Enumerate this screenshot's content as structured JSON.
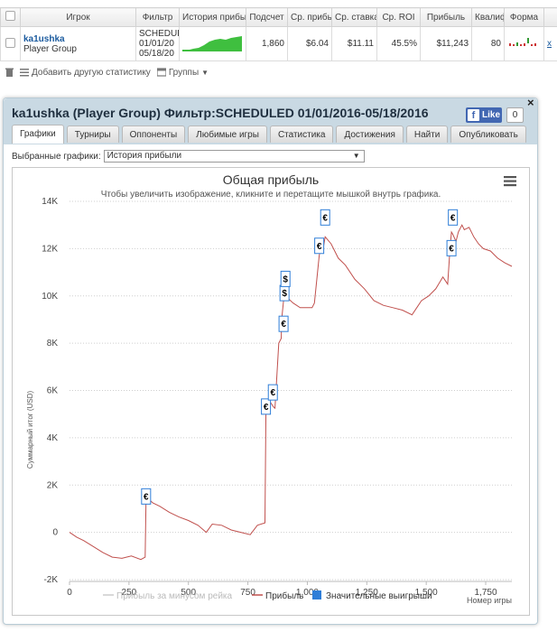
{
  "table": {
    "headers": [
      "Игрок",
      "Фильтр",
      "История прибы",
      "Подсчет",
      "Ср. прибы",
      "Ср. ставка",
      "Ср. ROI",
      "Прибыль",
      "Квалиф",
      "Форма"
    ],
    "row": {
      "player_name": "ka1ushka",
      "player_group": "Player Group",
      "filter_line1": "SCHEDUL",
      "filter_line2": "01/01/20",
      "filter_line3": "05/18/20",
      "count": "1,860",
      "avg_profit": "$6.04",
      "avg_stake": "$11.11",
      "avg_roi": "45.5%",
      "profit": "$11,243",
      "qualif": "80",
      "extra": "x"
    }
  },
  "toolbar": {
    "add_stat": "Добавить другую статистику",
    "groups": "Группы"
  },
  "dialog": {
    "title": "ka1ushka (Player Group) Фильтр:SCHEDULED 01/01/2016-05/18/2016",
    "fb_like": "Like",
    "fb_count": "0",
    "close": "×",
    "tabs": [
      "Графики",
      "Турниры",
      "Оппоненты",
      "Любимые игры",
      "Статистика",
      "Достижения",
      "Найти",
      "Опубликовать"
    ],
    "select_label": "Выбранные графики:",
    "select_value": "История прибыли"
  },
  "chart_data": {
    "type": "line",
    "title": "Общая прибыль",
    "subtitle": "Чтобы увеличить изображение, кликните и перетащите мышкой внутрь графика.",
    "ylabel": "Суммарный итог (USD)",
    "xlabel": "Номер игры",
    "xlim": [
      0,
      1860
    ],
    "ylim": [
      -2000,
      14000
    ],
    "x_ticks": [
      "0",
      "250",
      "500",
      "750",
      "1,000",
      "1,250",
      "1,500",
      "1,750"
    ],
    "x_tick_values": [
      0,
      250,
      500,
      750,
      1000,
      1250,
      1500,
      1750
    ],
    "y_ticks": [
      "-2K",
      "0",
      "2K",
      "4K",
      "6K",
      "8K",
      "10K",
      "12K",
      "14K"
    ],
    "y_tick_values": [
      -2000,
      0,
      2000,
      4000,
      6000,
      8000,
      10000,
      12000,
      14000
    ],
    "legend": [
      {
        "name": "Прибыль за минусом рейка",
        "color": "#cccccc"
      },
      {
        "name": "Прибыль",
        "color": "#c0504d"
      },
      {
        "name": "Значительные выигрыши",
        "color": "#2f7ed8"
      }
    ],
    "grid": true,
    "series": [
      {
        "name": "Прибыль",
        "color": "#c0504d",
        "x": [
          0,
          30,
          60,
          100,
          140,
          180,
          220,
          260,
          300,
          318,
          322,
          350,
          380,
          420,
          460,
          500,
          540,
          575,
          600,
          640,
          680,
          720,
          760,
          790,
          822,
          826,
          840,
          845,
          858,
          864,
          880,
          890,
          892,
          900,
          904,
          908,
          940,
          970,
          1020,
          1030,
          1050,
          1060,
          1066,
          1070,
          1075,
          1100,
          1130,
          1160,
          1200,
          1240,
          1280,
          1320,
          1360,
          1400,
          1440,
          1480,
          1510,
          1540,
          1570,
          1590,
          1600,
          1606,
          1612,
          1625,
          1635,
          1650,
          1660,
          1680,
          1700,
          1720,
          1740,
          1770,
          1800,
          1830,
          1860
        ],
        "y": [
          0,
          -200,
          -350,
          -600,
          -850,
          -1050,
          -1100,
          -1000,
          -1150,
          -1050,
          1500,
          1250,
          1100,
          850,
          650,
          500,
          300,
          0,
          350,
          300,
          100,
          0,
          -100,
          300,
          400,
          5200,
          5400,
          5500,
          5300,
          5250,
          8000,
          8200,
          9000,
          9800,
          10500,
          10000,
          9700,
          9500,
          9500,
          9700,
          11700,
          12200,
          12300,
          12200,
          12500,
          12200,
          11600,
          11300,
          10700,
          10300,
          9800,
          9600,
          9500,
          9400,
          9200,
          9800,
          10000,
          10300,
          10800,
          10500,
          12000,
          12700,
          12600,
          12300,
          12700,
          13000,
          12800,
          12900,
          12500,
          12200,
          12000,
          11900,
          11600,
          11400,
          11250
        ]
      }
    ],
    "big_wins": [
      {
        "x": 322,
        "y": 1500,
        "label": "€"
      },
      {
        "x": 826,
        "y": 5300,
        "label": "€"
      },
      {
        "x": 855,
        "y": 5900,
        "label": "€"
      },
      {
        "x": 900,
        "y": 8800,
        "label": "€"
      },
      {
        "x": 904,
        "y": 10100,
        "label": "$"
      },
      {
        "x": 908,
        "y": 10700,
        "label": "$"
      },
      {
        "x": 1050,
        "y": 12100,
        "label": "€"
      },
      {
        "x": 1075,
        "y": 13300,
        "label": "€"
      },
      {
        "x": 1606,
        "y": 12000,
        "label": "€"
      },
      {
        "x": 1612,
        "y": 13300,
        "label": "€"
      }
    ]
  }
}
